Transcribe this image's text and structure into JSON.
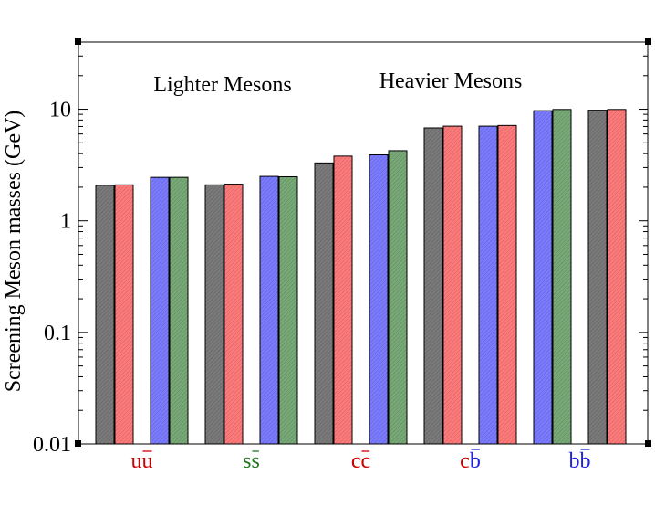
{
  "chart_data": {
    "type": "bar",
    "yscale": "log",
    "ylim": [
      0.01,
      40
    ],
    "ylabel": "Screening Meson masses (GeV)",
    "ytick_labels": [
      "0.01",
      "0.1",
      "1",
      "10"
    ],
    "ytick_values": [
      0.01,
      0.1,
      1,
      10
    ],
    "annotations": [
      "Lighter Mesons",
      "Heavier Mesons"
    ],
    "groups": [
      {
        "label_main": "u",
        "label_bar": "u",
        "label_color": "#cc0000",
        "bars": [
          {
            "value": 2.08,
            "color": "#7a7a7a"
          },
          {
            "value": 2.1,
            "color": "#ff7b7b"
          },
          {
            "value": 2.45,
            "color": "#7b7bff"
          },
          {
            "value": 2.45,
            "color": "#78aa78"
          }
        ]
      },
      {
        "label_main": "s",
        "label_bar": "s",
        "label_color": "#227722",
        "bars": [
          {
            "value": 2.1,
            "color": "#7a7a7a"
          },
          {
            "value": 2.13,
            "color": "#ff7b7b"
          },
          {
            "value": 2.5,
            "color": "#7b7bff"
          },
          {
            "value": 2.48,
            "color": "#78aa78"
          }
        ]
      },
      {
        "label_main": "c",
        "label_bar": "c",
        "label_color": "#cc0000",
        "bars": [
          {
            "value": 3.3,
            "color": "#7a7a7a"
          },
          {
            "value": 3.8,
            "color": "#ff7b7b"
          },
          {
            "value": 3.9,
            "color": "#7b7bff"
          },
          {
            "value": 4.25,
            "color": "#78aa78"
          }
        ]
      },
      {
        "label_main": "c",
        "label_bar": "b",
        "label_color": "#cc0000",
        "label_bar_color": "#2222dd",
        "bars": [
          {
            "value": 6.8,
            "color": "#7a7a7a"
          },
          {
            "value": 7.05,
            "color": "#ff7b7b"
          },
          {
            "value": 7.05,
            "color": "#7b7bff"
          },
          {
            "value": 7.15,
            "color": "#ff7b7b"
          }
        ]
      },
      {
        "label_main": "b",
        "label_bar": "b",
        "label_color": "#2222dd",
        "bars": [
          {
            "value": 9.7,
            "color": "#7b7bff"
          },
          {
            "value": 9.95,
            "color": "#78aa78"
          },
          {
            "value": 9.8,
            "color": "#7a7a7a"
          },
          {
            "value": 9.95,
            "color": "#ff7b7b"
          }
        ]
      }
    ]
  }
}
